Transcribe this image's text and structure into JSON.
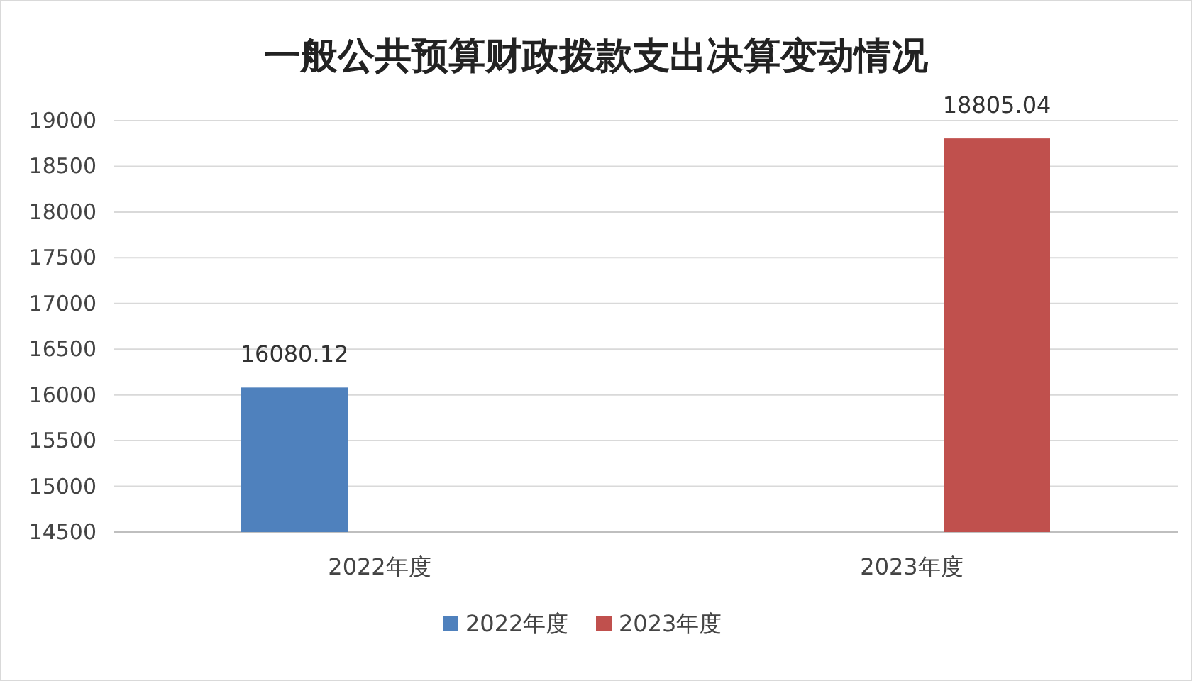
{
  "chart_data": {
    "type": "bar",
    "title": "一般公共预算财政拨款支出决算变动情况",
    "categories": [
      "2022年度",
      "2023年度"
    ],
    "series": [
      {
        "name": "2022年度",
        "color": "#4f81bd",
        "values": [
          16080.12,
          null
        ]
      },
      {
        "name": "2023年度",
        "color": "#c0504d",
        "values": [
          null,
          18805.04
        ]
      }
    ],
    "ylim": [
      14500,
      19000
    ],
    "yticks": [
      14500,
      15000,
      15500,
      16000,
      16500,
      17000,
      17500,
      18000,
      18500,
      19000
    ],
    "grid": "y",
    "legend": "bottom",
    "data_labels": true
  }
}
